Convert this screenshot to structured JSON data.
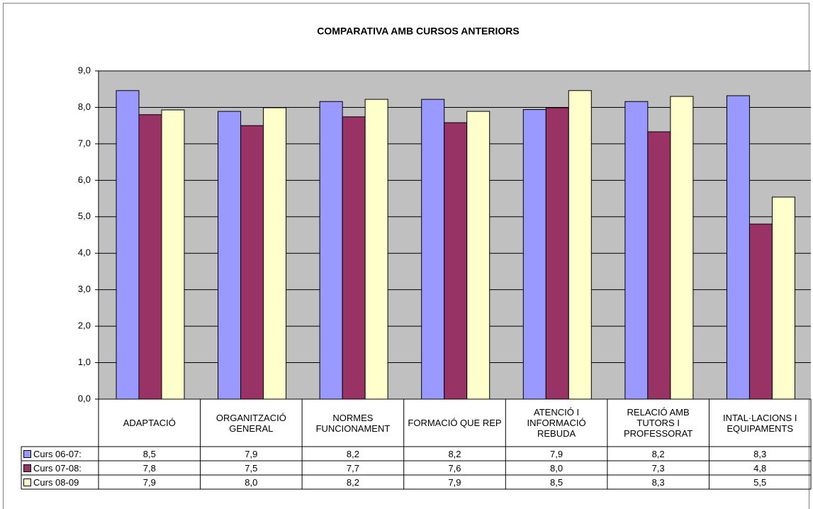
{
  "chart_data": {
    "type": "bar",
    "title": "COMPARATIVA AMB CURSOS ANTERIORS",
    "categories": [
      "ADAPTACIÓ",
      "ORGANITZACIÓ GENERAL",
      "NORMES FUNCIONAMENT",
      "FORMACIÓ QUE REP",
      "ATENCIÓ I INFORMACIÓ REBUDA",
      "RELACIÓ AMB TUTORS I PROFESSORAT",
      "INTAL·LACIONS I EQUIPAMENTS"
    ],
    "series": [
      {
        "name": "Curs 06-07:",
        "color": "#9999ff",
        "values": [
          8.46,
          7.89,
          8.16,
          8.22,
          7.94,
          8.16,
          8.32
        ],
        "value_labels": [
          "8,5",
          "7,9",
          "8,2",
          "8,2",
          "7,9",
          "8,2",
          "8,3"
        ]
      },
      {
        "name": "Curs 07-08:",
        "color": "#993366",
        "values": [
          7.8,
          7.5,
          7.74,
          7.58,
          7.99,
          7.33,
          4.8
        ],
        "value_labels": [
          "7,8",
          "7,5",
          "7,7",
          "7,6",
          "8,0",
          "7,3",
          "4,8"
        ]
      },
      {
        "name": "Curs 08-09",
        "color": "#ffffcc",
        "values": [
          7.93,
          7.99,
          8.22,
          7.89,
          8.46,
          8.3,
          5.54
        ],
        "value_labels": [
          "7,9",
          "8,0",
          "8,2",
          "7,9",
          "8,5",
          "8,3",
          "5,5"
        ]
      }
    ],
    "ylim": [
      0,
      9
    ],
    "yticks": [
      {
        "value": 0,
        "label": "0,0"
      },
      {
        "value": 1,
        "label": "1,0"
      },
      {
        "value": 2,
        "label": "2,0"
      },
      {
        "value": 3,
        "label": "3,0"
      },
      {
        "value": 4,
        "label": "4,0"
      },
      {
        "value": 5,
        "label": "5,0"
      },
      {
        "value": 6,
        "label": "6,0"
      },
      {
        "value": 7,
        "label": "7,0"
      },
      {
        "value": 8,
        "label": "8,0"
      },
      {
        "value": 9,
        "label": "9,0"
      }
    ],
    "grid": true
  }
}
